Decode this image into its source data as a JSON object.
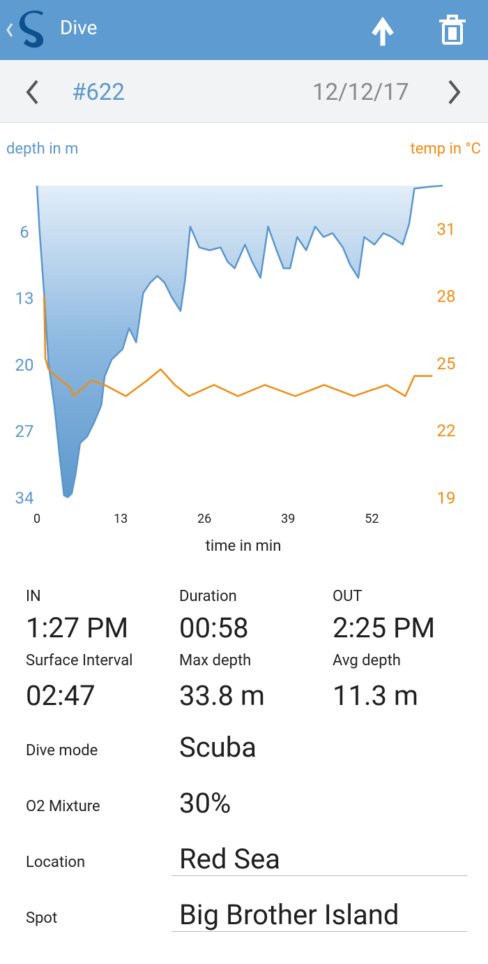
{
  "app_bar": {
    "title": "Dive"
  },
  "navigation": {
    "dive_number": "#622",
    "date": "12/12/17"
  },
  "chart_data": {
    "type": "line",
    "ylabel": "depth in m",
    "y2label": "temp in °C",
    "xlabel": "time in min",
    "xlim": [
      0,
      63
    ],
    "xticks": [
      0,
      13,
      26,
      39,
      52
    ],
    "ylim": [
      34,
      1
    ],
    "yticks": [
      6,
      13,
      20,
      27,
      34
    ],
    "y2lim": [
      19,
      33
    ],
    "y2ticks": [
      31,
      28,
      25,
      22,
      19
    ],
    "series": [
      {
        "name": "depth",
        "color": "#5b97cc",
        "fill": true,
        "x": [
          0,
          0.4,
          1.1,
          1.8,
          2.7,
          3.6,
          4.2,
          4.8,
          5.4,
          6,
          6.7,
          7.8,
          8.9,
          10,
          10.5,
          11.6,
          13.3,
          14.3,
          15.4,
          16.5,
          17.6,
          18.7,
          19.8,
          20.9,
          22.3,
          23,
          23.8,
          25.2,
          26.8,
          28.5,
          29.6,
          30.7,
          32.3,
          33.4,
          34.7,
          35.9,
          37.2,
          38.3,
          39.3,
          40.4,
          41.8,
          43.2,
          44.5,
          45.9,
          47.5,
          48.6,
          49.9,
          50.8,
          52.4,
          53.8,
          55.1,
          56.8,
          57.8,
          58.6,
          61.1,
          63
        ],
        "values": [
          1,
          5.7,
          12.3,
          19.7,
          24.1,
          30,
          33.6,
          33.8,
          33.4,
          31.4,
          28.1,
          27.4,
          25.9,
          24.1,
          21.1,
          19.3,
          18.2,
          16,
          17.5,
          12.3,
          11.2,
          10.5,
          11.2,
          12.7,
          14.2,
          10.9,
          5.3,
          7.5,
          7.8,
          7.5,
          9,
          9.7,
          7.2,
          9,
          10.7,
          5.3,
          7.8,
          9.7,
          9.7,
          6.4,
          7.8,
          5.3,
          6.4,
          6,
          7.5,
          9.3,
          10.7,
          6.4,
          7.2,
          6,
          6.4,
          7.2,
          5,
          1.3,
          1.1,
          1
        ]
      },
      {
        "name": "temp",
        "color": "#f28c12",
        "axis": "y2",
        "x": [
          1.1,
          1.3,
          1.8,
          2.9,
          5.1,
          5.7,
          7.3,
          8.4,
          10.5,
          13.8,
          17.1,
          19.2,
          21.4,
          23.6,
          27.5,
          31.2,
          35.4,
          40.1,
          44.6,
          49.2,
          54.3,
          57.2,
          58.6,
          61.4
        ],
        "values": [
          28.1,
          25.3,
          24.8,
          24.5,
          24,
          23.6,
          24,
          24.3,
          24.1,
          23.6,
          24.3,
          24.8,
          24.1,
          23.6,
          24.1,
          23.6,
          24.1,
          23.6,
          24.1,
          23.6,
          24.1,
          23.6,
          24.5,
          24.5
        ]
      }
    ]
  },
  "details": {
    "stats": [
      {
        "label": "IN",
        "value": "1:27 PM"
      },
      {
        "label": "Duration",
        "value": "00:58"
      },
      {
        "label": "OUT",
        "value": "2:25 PM"
      },
      {
        "label": "Surface Interval",
        "value": "02:47"
      },
      {
        "label": "Max depth",
        "value": "33.8 m"
      },
      {
        "label": "Avg depth",
        "value": "11.3 m"
      }
    ],
    "fields": [
      {
        "label": "Dive mode",
        "value": "Scuba"
      },
      {
        "label": "O2 Mixture",
        "value": "30%"
      },
      {
        "label": "Location",
        "value": "Red Sea"
      },
      {
        "label": "Spot",
        "value": "Big Brother Island"
      }
    ]
  }
}
